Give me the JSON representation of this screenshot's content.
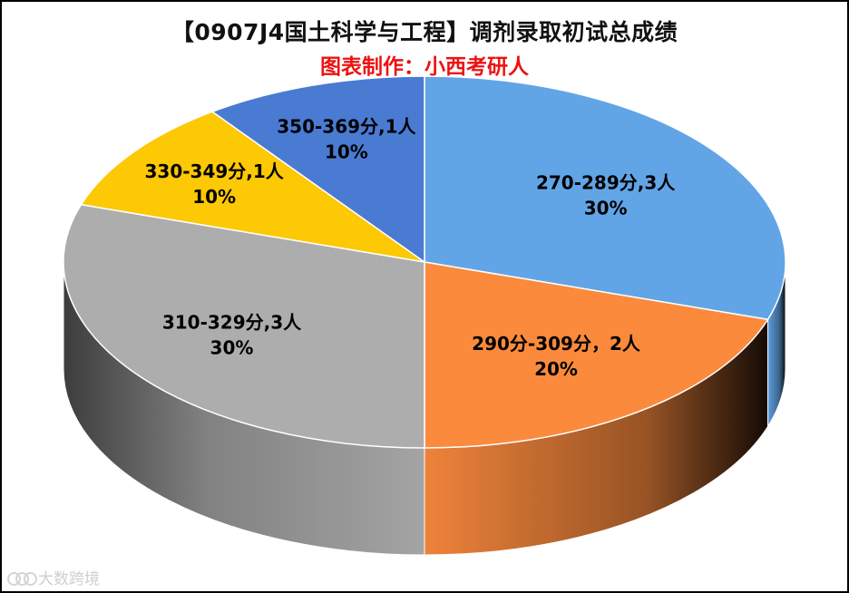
{
  "chart_data": {
    "type": "pie",
    "title": "【0907J4国土科学与工程】调剂录取初试总成绩",
    "subtitle": "图表制作：小西考研人",
    "slices": [
      {
        "name": "270-289分,3人",
        "value": 3,
        "percent": "30%",
        "color": "#62A5E6"
      },
      {
        "name": "290分-309分，2人",
        "value": 2,
        "percent": "20%",
        "color": "#FB8A3D"
      },
      {
        "name": "310-329分,3人",
        "value": 3,
        "percent": "30%",
        "color": "#ADADAD"
      },
      {
        "name": "330-349分,1人",
        "value": 1,
        "percent": "10%",
        "color": "#FDC804"
      },
      {
        "name": "350-369分,1人",
        "value": 1,
        "percent": "10%",
        "color": "#4A7BD2"
      }
    ],
    "legend": "none",
    "style": "3d"
  },
  "colors": {
    "title": "#111111",
    "subtitle": "#EE1111"
  },
  "watermark": {
    "text": "大数跨境",
    "icon": "watermark-logo-icon"
  }
}
